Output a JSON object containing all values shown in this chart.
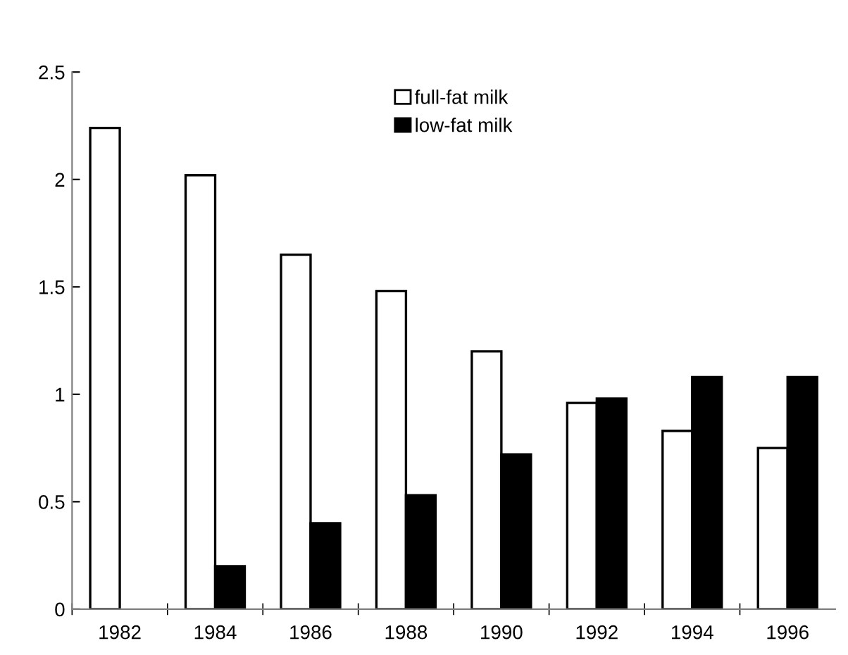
{
  "chart_data": {
    "type": "bar",
    "categories": [
      "1982",
      "1984",
      "1986",
      "1988",
      "1990",
      "1992",
      "1994",
      "1996"
    ],
    "series": [
      {
        "name": "full-fat milk",
        "color": "#ffffff",
        "values": [
          2.24,
          2.02,
          1.65,
          1.48,
          1.2,
          0.96,
          0.83,
          0.75
        ]
      },
      {
        "name": "low-fat milk",
        "color": "#000000",
        "values": [
          null,
          0.2,
          0.4,
          0.53,
          0.72,
          0.98,
          1.08,
          1.08
        ]
      }
    ],
    "ylim": [
      0,
      2.5
    ],
    "yticks": [
      0,
      0.5,
      1,
      1.5,
      2,
      2.5
    ],
    "grid": false,
    "legend": "top"
  }
}
